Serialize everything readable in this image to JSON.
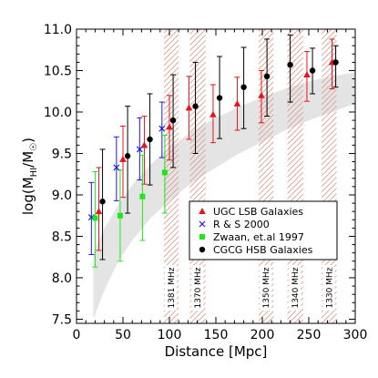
{
  "chart_data": {
    "type": "scatter",
    "xlabel": "Distance [Mpc]",
    "ylabel": "log(M_HI/M_☉)",
    "xlim": [
      0,
      300
    ],
    "ylim": [
      7.45,
      11.0
    ],
    "x_ticks": [
      0,
      50,
      100,
      150,
      200,
      250,
      300
    ],
    "x_tick_labels": [
      "0",
      "50",
      "100",
      "150",
      "200",
      "250",
      "300"
    ],
    "y_ticks": [
      7.5,
      8.0,
      8.5,
      9.0,
      9.5,
      10.0,
      10.5,
      11.0
    ],
    "y_tick_labels": [
      "7.5",
      "8.0",
      "8.5",
      "9.0",
      "9.5",
      "10.0",
      "10.5",
      "11.0"
    ],
    "legend_placement": "lower-right",
    "sensitivity_band": {
      "x": [
        18,
        30,
        45,
        60,
        80,
        100,
        125,
        150,
        175,
        200,
        225,
        250,
        275,
        300
      ],
      "lower": [
        7.5,
        7.85,
        8.2,
        8.45,
        8.72,
        8.93,
        9.15,
        9.33,
        9.5,
        9.64,
        9.78,
        9.9,
        10.0,
        10.1
      ],
      "upper": [
        8.3,
        8.6,
        8.88,
        9.12,
        9.37,
        9.57,
        9.77,
        9.93,
        10.06,
        10.18,
        10.28,
        10.37,
        10.43,
        10.48
      ]
    },
    "frequency_bands": [
      {
        "label": "1381 MHz",
        "xmin": 94,
        "xmax": 110
      },
      {
        "label": "1370 MHz",
        "xmin": 122,
        "xmax": 139
      },
      {
        "label": "1350 MHz",
        "xmin": 196,
        "xmax": 212
      },
      {
        "label": "1340 MHz",
        "xmin": 227,
        "xmax": 244
      },
      {
        "label": "1330 MHz",
        "xmin": 264,
        "xmax": 280
      }
    ],
    "series": [
      {
        "name": "UGC LSB Galaxies",
        "marker": "triangle",
        "color": "#e8141a",
        "points": [
          {
            "x": 24,
            "y": 8.8,
            "ylo": 8.33,
            "yhi": 9.33
          },
          {
            "x": 50,
            "y": 9.43,
            "ylo": 8.97,
            "yhi": 9.83
          },
          {
            "x": 73,
            "y": 9.6,
            "ylo": 9.13,
            "yhi": 9.95
          },
          {
            "x": 100,
            "y": 9.82,
            "ylo": 9.42,
            "yhi": 10.2
          },
          {
            "x": 121,
            "y": 10.05,
            "ylo": 9.67,
            "yhi": 10.43
          },
          {
            "x": 147,
            "y": 9.97,
            "ylo": 9.63,
            "yhi": 10.33
          },
          {
            "x": 173,
            "y": 10.1,
            "ylo": 9.78,
            "yhi": 10.42
          },
          {
            "x": 199,
            "y": 10.2,
            "ylo": 9.87,
            "yhi": 10.5
          },
          {
            "x": 248,
            "y": 10.45,
            "ylo": 10.13,
            "yhi": 10.73
          },
          {
            "x": 275,
            "y": 10.6,
            "ylo": 10.28,
            "yhi": 10.88
          }
        ]
      },
      {
        "name": "R & S 2000",
        "marker": "cross",
        "color": "#1a1adf",
        "points": [
          {
            "x": 16,
            "y": 8.73,
            "ylo": 8.28,
            "yhi": 9.15
          },
          {
            "x": 43,
            "y": 9.33,
            "ylo": 8.93,
            "yhi": 9.7
          },
          {
            "x": 68,
            "y": 9.55,
            "ylo": 9.18,
            "yhi": 9.93
          },
          {
            "x": 92,
            "y": 9.8,
            "ylo": 9.45,
            "yhi": 10.12
          }
        ]
      },
      {
        "name": "Zwaan, et.al 1997",
        "marker": "square",
        "color": "#1ee61e",
        "points": [
          {
            "x": 20,
            "y": 8.72,
            "ylo": 8.13,
            "yhi": 9.28
          },
          {
            "x": 47,
            "y": 8.75,
            "ylo": 8.2,
            "yhi": 9.3
          },
          {
            "x": 71,
            "y": 8.98,
            "ylo": 8.45,
            "yhi": 9.48
          },
          {
            "x": 95,
            "y": 9.27,
            "ylo": 8.78,
            "yhi": 9.72
          }
        ]
      },
      {
        "name": "CGCG HSB Galaxies",
        "marker": "circle",
        "color": "#000000",
        "points": [
          {
            "x": 28,
            "y": 8.92,
            "ylo": 8.22,
            "yhi": 9.55
          },
          {
            "x": 55,
            "y": 9.47,
            "ylo": 8.78,
            "yhi": 10.07
          },
          {
            "x": 79,
            "y": 9.67,
            "ylo": 9.12,
            "yhi": 10.22
          },
          {
            "x": 104,
            "y": 9.9,
            "ylo": 9.33,
            "yhi": 10.45
          },
          {
            "x": 128,
            "y": 10.07,
            "ylo": 9.5,
            "yhi": 10.6
          },
          {
            "x": 154,
            "y": 10.17,
            "ylo": 9.68,
            "yhi": 10.67
          },
          {
            "x": 180,
            "y": 10.3,
            "ylo": 9.8,
            "yhi": 10.78
          },
          {
            "x": 205,
            "y": 10.43,
            "ylo": 9.95,
            "yhi": 10.88
          },
          {
            "x": 230,
            "y": 10.57,
            "ylo": 10.12,
            "yhi": 10.93
          },
          {
            "x": 254,
            "y": 10.5,
            "ylo": 10.22,
            "yhi": 10.77
          },
          {
            "x": 279,
            "y": 10.6,
            "ylo": 10.3,
            "yhi": 10.8
          }
        ]
      }
    ]
  }
}
